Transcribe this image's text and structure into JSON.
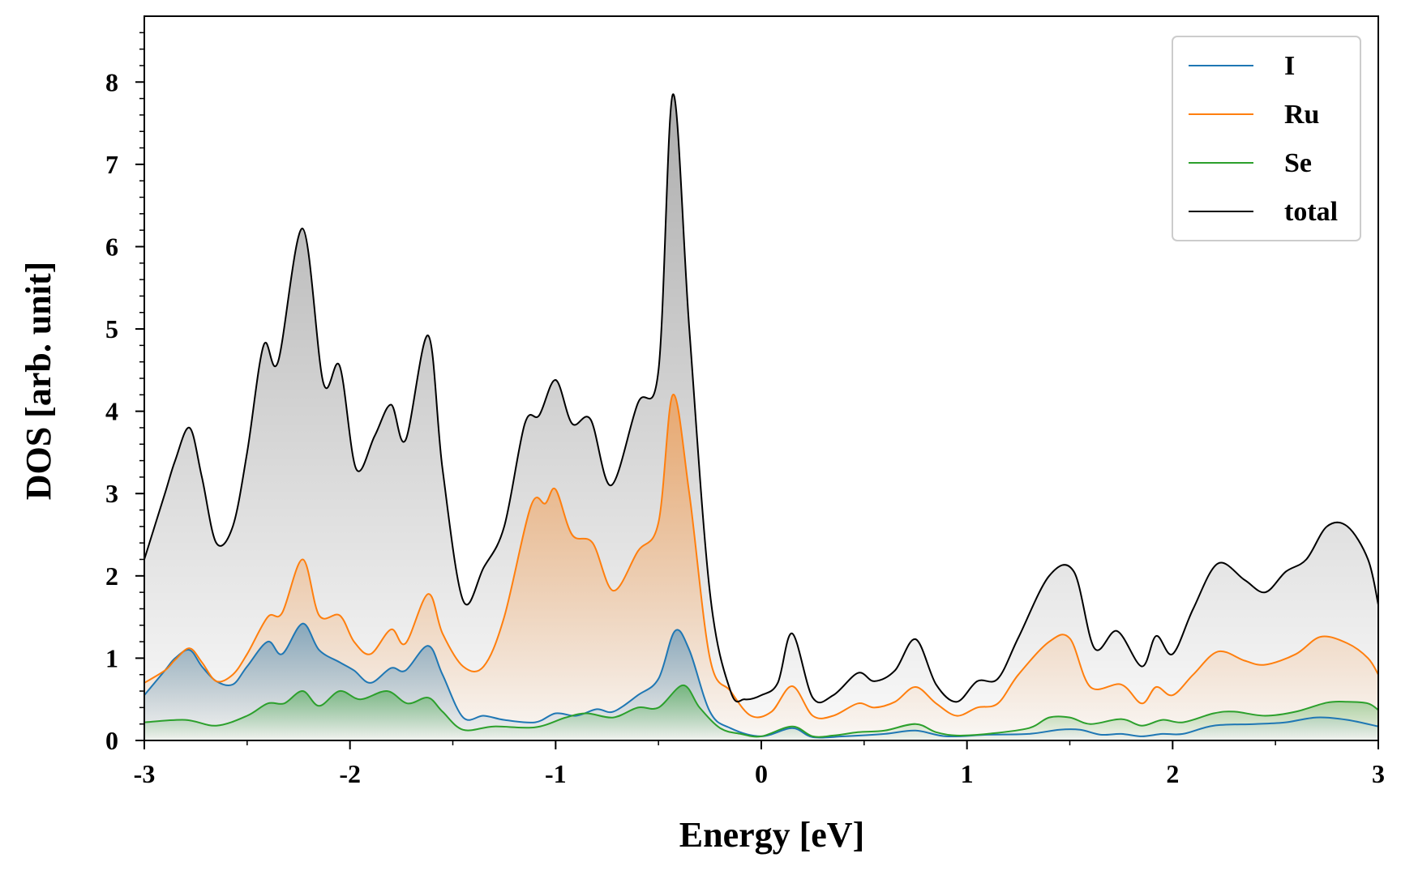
{
  "chart_data": {
    "type": "line",
    "title": "",
    "xlabel": "Energy [eV]",
    "ylabel": "DOS [arb. unit]",
    "xlim": [
      -3,
      3
    ],
    "ylim": [
      0,
      8.8
    ],
    "xticks": [
      -3,
      -2,
      -1,
      0,
      1,
      2,
      3
    ],
    "xtick_labels": [
      "-3",
      "-2",
      "-1",
      "0",
      "1",
      "2",
      "3"
    ],
    "yticks": [
      0,
      1,
      2,
      3,
      4,
      5,
      6,
      7,
      8
    ],
    "ytick_labels": [
      "0",
      "1",
      "2",
      "3",
      "4",
      "5",
      "6",
      "7",
      "8"
    ],
    "grid": false,
    "legend_position": "top-right",
    "series": [
      {
        "name": "I",
        "color": "#1f77b4",
        "fill": true,
        "x": [
          -3.0,
          -2.9,
          -2.85,
          -2.78,
          -2.72,
          -2.65,
          -2.57,
          -2.5,
          -2.4,
          -2.33,
          -2.23,
          -2.15,
          -2.05,
          -1.98,
          -1.9,
          -1.8,
          -1.73,
          -1.62,
          -1.55,
          -1.45,
          -1.35,
          -1.25,
          -1.1,
          -1.0,
          -0.9,
          -0.8,
          -0.72,
          -0.6,
          -0.5,
          -0.42,
          -0.35,
          -0.25,
          -0.15,
          0.0,
          0.15,
          0.25,
          0.4,
          0.6,
          0.75,
          0.9,
          1.1,
          1.3,
          1.45,
          1.55,
          1.65,
          1.75,
          1.85,
          1.95,
          2.05,
          2.2,
          2.4,
          2.55,
          2.7,
          2.85,
          3.0
        ],
        "y": [
          0.55,
          0.85,
          1.0,
          1.1,
          0.9,
          0.72,
          0.68,
          0.9,
          1.2,
          1.05,
          1.42,
          1.1,
          0.95,
          0.85,
          0.7,
          0.88,
          0.85,
          1.15,
          0.8,
          0.28,
          0.3,
          0.25,
          0.22,
          0.33,
          0.3,
          0.38,
          0.35,
          0.55,
          0.75,
          1.33,
          1.1,
          0.35,
          0.15,
          0.05,
          0.15,
          0.04,
          0.05,
          0.08,
          0.12,
          0.05,
          0.07,
          0.08,
          0.13,
          0.13,
          0.07,
          0.08,
          0.05,
          0.08,
          0.08,
          0.18,
          0.2,
          0.22,
          0.28,
          0.25,
          0.17
        ]
      },
      {
        "name": "Ru",
        "color": "#ff7f0e",
        "fill": true,
        "x": [
          -3.0,
          -2.9,
          -2.85,
          -2.78,
          -2.72,
          -2.65,
          -2.57,
          -2.5,
          -2.4,
          -2.33,
          -2.23,
          -2.15,
          -2.05,
          -1.98,
          -1.9,
          -1.8,
          -1.73,
          -1.62,
          -1.55,
          -1.45,
          -1.35,
          -1.25,
          -1.12,
          -1.05,
          -1.0,
          -0.92,
          -0.82,
          -0.72,
          -0.6,
          -0.5,
          -0.43,
          -0.35,
          -0.25,
          -0.15,
          -0.05,
          0.05,
          0.15,
          0.25,
          0.35,
          0.47,
          0.55,
          0.65,
          0.75,
          0.85,
          0.95,
          1.05,
          1.15,
          1.25,
          1.4,
          1.5,
          1.6,
          1.75,
          1.85,
          1.92,
          2.0,
          2.1,
          2.22,
          2.35,
          2.45,
          2.6,
          2.72,
          2.85,
          2.95,
          3.0
        ],
        "y": [
          0.7,
          0.85,
          0.98,
          1.12,
          0.95,
          0.72,
          0.8,
          1.05,
          1.5,
          1.55,
          2.2,
          1.52,
          1.52,
          1.2,
          1.05,
          1.35,
          1.18,
          1.78,
          1.3,
          0.9,
          0.9,
          1.5,
          2.85,
          2.88,
          3.05,
          2.5,
          2.4,
          1.82,
          2.3,
          2.65,
          4.2,
          3.0,
          1.0,
          0.6,
          0.3,
          0.35,
          0.66,
          0.3,
          0.3,
          0.45,
          0.4,
          0.47,
          0.65,
          0.45,
          0.3,
          0.4,
          0.45,
          0.8,
          1.2,
          1.24,
          0.65,
          0.68,
          0.45,
          0.65,
          0.55,
          0.8,
          1.08,
          0.97,
          0.92,
          1.05,
          1.26,
          1.18,
          1.0,
          0.8
        ]
      },
      {
        "name": "Se",
        "color": "#2ca02c",
        "fill": true,
        "x": [
          -3.0,
          -2.8,
          -2.65,
          -2.5,
          -2.4,
          -2.32,
          -2.23,
          -2.15,
          -2.05,
          -1.95,
          -1.82,
          -1.72,
          -1.62,
          -1.55,
          -1.45,
          -1.3,
          -1.1,
          -0.95,
          -0.85,
          -0.72,
          -0.6,
          -0.5,
          -0.38,
          -0.3,
          -0.2,
          -0.1,
          0.0,
          0.15,
          0.25,
          0.35,
          0.47,
          0.6,
          0.75,
          0.85,
          0.95,
          1.1,
          1.3,
          1.4,
          1.5,
          1.6,
          1.75,
          1.85,
          1.95,
          2.05,
          2.2,
          2.3,
          2.45,
          2.6,
          2.75,
          2.85,
          2.95,
          3.0
        ],
        "y": [
          0.22,
          0.25,
          0.18,
          0.3,
          0.45,
          0.45,
          0.6,
          0.42,
          0.6,
          0.5,
          0.6,
          0.45,
          0.52,
          0.35,
          0.13,
          0.17,
          0.16,
          0.28,
          0.33,
          0.28,
          0.4,
          0.4,
          0.67,
          0.4,
          0.15,
          0.08,
          0.05,
          0.17,
          0.05,
          0.06,
          0.1,
          0.12,
          0.2,
          0.1,
          0.06,
          0.08,
          0.15,
          0.28,
          0.28,
          0.2,
          0.26,
          0.18,
          0.25,
          0.22,
          0.33,
          0.35,
          0.3,
          0.35,
          0.46,
          0.47,
          0.45,
          0.37
        ]
      },
      {
        "name": "total",
        "color": "#000000",
        "fill": true,
        "x": [
          -3.0,
          -2.9,
          -2.85,
          -2.78,
          -2.72,
          -2.65,
          -2.57,
          -2.5,
          -2.42,
          -2.35,
          -2.23,
          -2.13,
          -2.05,
          -1.97,
          -1.88,
          -1.8,
          -1.73,
          -1.62,
          -1.55,
          -1.45,
          -1.35,
          -1.25,
          -1.15,
          -1.08,
          -1.0,
          -0.92,
          -0.83,
          -0.73,
          -0.6,
          -0.5,
          -0.43,
          -0.35,
          -0.25,
          -0.15,
          -0.08,
          0.0,
          0.08,
          0.15,
          0.25,
          0.35,
          0.47,
          0.55,
          0.65,
          0.75,
          0.85,
          0.95,
          1.05,
          1.15,
          1.25,
          1.4,
          1.52,
          1.62,
          1.73,
          1.85,
          1.92,
          2.0,
          2.1,
          2.22,
          2.35,
          2.45,
          2.55,
          2.65,
          2.75,
          2.85,
          2.95,
          3.0
        ],
        "y": [
          2.2,
          3.0,
          3.4,
          3.8,
          3.2,
          2.4,
          2.6,
          3.5,
          4.8,
          4.6,
          6.22,
          4.35,
          4.55,
          3.3,
          3.7,
          4.08,
          3.65,
          4.92,
          3.3,
          1.7,
          2.1,
          2.6,
          3.85,
          3.95,
          4.38,
          3.85,
          3.9,
          3.1,
          4.1,
          4.5,
          7.85,
          5.0,
          1.8,
          0.6,
          0.5,
          0.55,
          0.7,
          1.3,
          0.52,
          0.55,
          0.82,
          0.72,
          0.85,
          1.23,
          0.68,
          0.47,
          0.72,
          0.75,
          1.25,
          2.0,
          2.05,
          1.12,
          1.33,
          0.9,
          1.27,
          1.05,
          1.6,
          2.15,
          1.95,
          1.8,
          2.05,
          2.2,
          2.6,
          2.6,
          2.2,
          1.65
        ]
      }
    ]
  }
}
